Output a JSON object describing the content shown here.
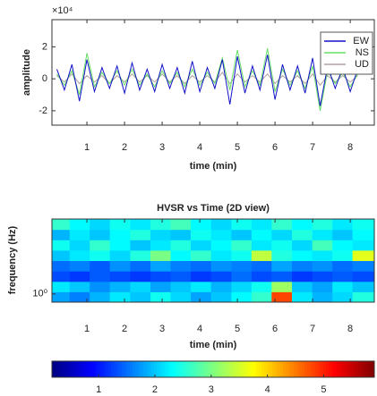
{
  "chart_data": [
    {
      "type": "line",
      "x_label": "time (min)",
      "y_label": "amplitude",
      "y_exponent_label": "×10⁴",
      "xlim": [
        0.07,
        8.64
      ],
      "xticks": [
        1,
        2,
        3,
        4,
        5,
        6,
        7,
        8
      ],
      "ylim": [
        -2.9,
        3.7
      ],
      "yticks": [
        -2,
        0,
        2
      ],
      "legend": "northeast",
      "x": [
        0.2,
        0.4,
        0.6,
        0.8,
        1.0,
        1.2,
        1.4,
        1.6,
        1.8,
        2.0,
        2.2,
        2.4,
        2.6,
        2.8,
        3.0,
        3.2,
        3.4,
        3.6,
        3.8,
        4.0,
        4.2,
        4.4,
        4.6,
        4.8,
        5.0,
        5.2,
        5.4,
        5.6,
        5.8,
        6.0,
        6.2,
        6.4,
        6.6,
        6.8,
        7.0,
        7.2,
        7.4,
        7.6,
        7.8,
        8.0,
        8.2
      ],
      "series": [
        {
          "name": "UD",
          "color": "#b0a0a0",
          "values": [
            0.2,
            -0.2,
            0.3,
            -0.3,
            0.2,
            -0.2,
            0.2,
            -0.3,
            0.2,
            -0.2,
            0.3,
            -0.2,
            0.2,
            -0.2,
            0.3,
            -0.2,
            0.2,
            -0.3,
            0.2,
            -0.2,
            0.2,
            -0.2,
            0.4,
            -0.3,
            0.3,
            -0.2,
            0.2,
            -0.2,
            0.3,
            -0.3,
            0.2,
            -0.2,
            0.2,
            -0.3,
            0.3,
            -0.4,
            0.2,
            -0.2,
            0.2,
            -0.2,
            0.2
          ]
        },
        {
          "name": "NS",
          "color": "#66dd66",
          "values": [
            0.3,
            -0.4,
            0.5,
            -1.0,
            1.6,
            -0.5,
            0.4,
            -0.3,
            0.5,
            -0.4,
            0.6,
            -0.4,
            0.3,
            -0.5,
            0.5,
            -0.3,
            0.4,
            -0.5,
            0.6,
            -0.4,
            0.4,
            -0.3,
            1.3,
            -0.7,
            1.8,
            -0.5,
            0.5,
            -0.4,
            1.9,
            -0.8,
            0.6,
            -0.4,
            0.5,
            -0.6,
            0.8,
            -2.0,
            0.5,
            -0.3,
            0.4,
            -0.5,
            0.3
          ]
        },
        {
          "name": "EW",
          "color": "#1010c8",
          "values": [
            0.6,
            -0.7,
            0.9,
            -1.4,
            1.2,
            -0.8,
            0.7,
            -0.6,
            0.8,
            -0.9,
            1.0,
            -0.7,
            0.6,
            -0.8,
            0.9,
            -0.6,
            0.7,
            -0.9,
            1.1,
            -0.8,
            0.7,
            -0.6,
            1.2,
            -1.6,
            1.4,
            -0.9,
            0.8,
            -0.7,
            1.5,
            -1.3,
            0.9,
            -0.7,
            0.8,
            -0.9,
            1.3,
            -1.7,
            0.8,
            -0.6,
            0.7,
            -0.8,
            0.6
          ]
        }
      ]
    },
    {
      "type": "heatmap",
      "title": "HVSR vs Time (2D view)",
      "x_label": "time (min)",
      "y_label": "frequency (Hz)",
      "xlim": [
        0.07,
        8.64
      ],
      "xticks": [
        1,
        2,
        3,
        4,
        5,
        6,
        7,
        8
      ],
      "ylim": [
        0.72,
        20
      ],
      "y_log": true,
      "yticks": [
        {
          "value": 1,
          "label": "10⁰"
        }
      ],
      "x": [
        0.27,
        0.81,
        1.34,
        1.88,
        2.42,
        2.96,
        3.49,
        4.03,
        4.57,
        5.11,
        5.64,
        6.18,
        6.72,
        7.26,
        7.79,
        8.33
      ],
      "y": [
        0.886,
        1.34,
        2.03,
        3.08,
        4.67,
        7.07,
        10.7,
        16.2
      ],
      "z": [
        [
          1.8,
          1.6,
          1.9,
          2.2,
          2.0,
          2.4,
          2.1,
          1.8,
          2.0,
          2.3,
          2.6,
          4.8,
          2.2,
          1.9,
          2.1,
          2.5
        ],
        [
          2.2,
          2.0,
          1.7,
          1.9,
          2.1,
          1.8,
          2.0,
          2.2,
          1.9,
          2.1,
          2.4,
          3.2,
          2.0,
          1.8,
          2.2,
          2.0
        ],
        [
          1.3,
          1.2,
          1.4,
          1.3,
          1.2,
          1.3,
          1.4,
          1.2,
          1.3,
          1.5,
          1.3,
          1.4,
          1.2,
          1.3,
          1.4,
          1.3
        ],
        [
          1.5,
          1.6,
          1.4,
          1.7,
          1.5,
          1.8,
          1.6,
          1.5,
          1.7,
          1.6,
          1.5,
          1.8,
          1.6,
          1.7,
          1.5,
          1.6
        ],
        [
          2.0,
          2.2,
          2.4,
          2.1,
          2.5,
          3.0,
          2.3,
          2.6,
          2.2,
          2.4,
          3.4,
          2.5,
          2.3,
          2.2,
          2.4,
          3.6
        ],
        [
          2.4,
          2.1,
          2.6,
          2.3,
          2.0,
          2.2,
          2.5,
          2.1,
          2.3,
          2.6,
          2.2,
          2.4,
          2.1,
          2.7,
          2.3,
          2.2
        ],
        [
          1.9,
          2.2,
          2.0,
          2.3,
          2.5,
          2.1,
          2.0,
          2.4,
          2.2,
          2.0,
          2.3,
          2.1,
          2.5,
          2.2,
          2.0,
          2.3
        ],
        [
          2.6,
          2.3,
          2.1,
          2.4,
          2.2,
          2.5,
          2.7,
          2.3,
          2.1,
          2.4,
          2.2,
          2.6,
          2.3,
          2.5,
          2.2,
          2.4
        ]
      ],
      "colormap": "jet",
      "clim": [
        0.17,
        5.9
      ],
      "cticks": [
        1,
        2,
        3,
        4,
        5
      ]
    }
  ]
}
